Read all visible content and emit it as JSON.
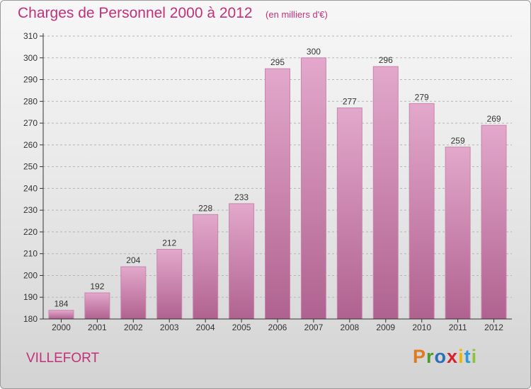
{
  "chart_data": {
    "type": "bar",
    "title": "Charges de Personnel 2000 à 2012",
    "subtitle": "(en milliers d'€)",
    "categories": [
      "2000",
      "2001",
      "2002",
      "2003",
      "2004",
      "2005",
      "2006",
      "2007",
      "2008",
      "2009",
      "2010",
      "2011",
      "2012"
    ],
    "values": [
      184,
      192,
      204,
      212,
      228,
      233,
      295,
      300,
      277,
      296,
      279,
      259,
      269
    ],
    "ylim": [
      180,
      310
    ],
    "yticks": [
      180,
      190,
      200,
      210,
      220,
      230,
      240,
      250,
      260,
      270,
      280,
      290,
      300,
      310
    ],
    "xlabel": "",
    "ylabel": "",
    "grid": true,
    "bar_color": "#cf7aab",
    "bar_highlight": "#e3a8cc",
    "data_labels": true
  },
  "place_name": "VILLEFORT",
  "logo": {
    "text": "Proxiti",
    "colors": [
      "#e07a1f",
      "#4a9a2c",
      "#2b6fb5",
      "#d9212c",
      "#f0b400",
      "#2b9ad6",
      "#8ac43f"
    ]
  },
  "colors": {
    "title": "#c2307a",
    "axis": "#333333",
    "grid": "#b5b5b5"
  }
}
